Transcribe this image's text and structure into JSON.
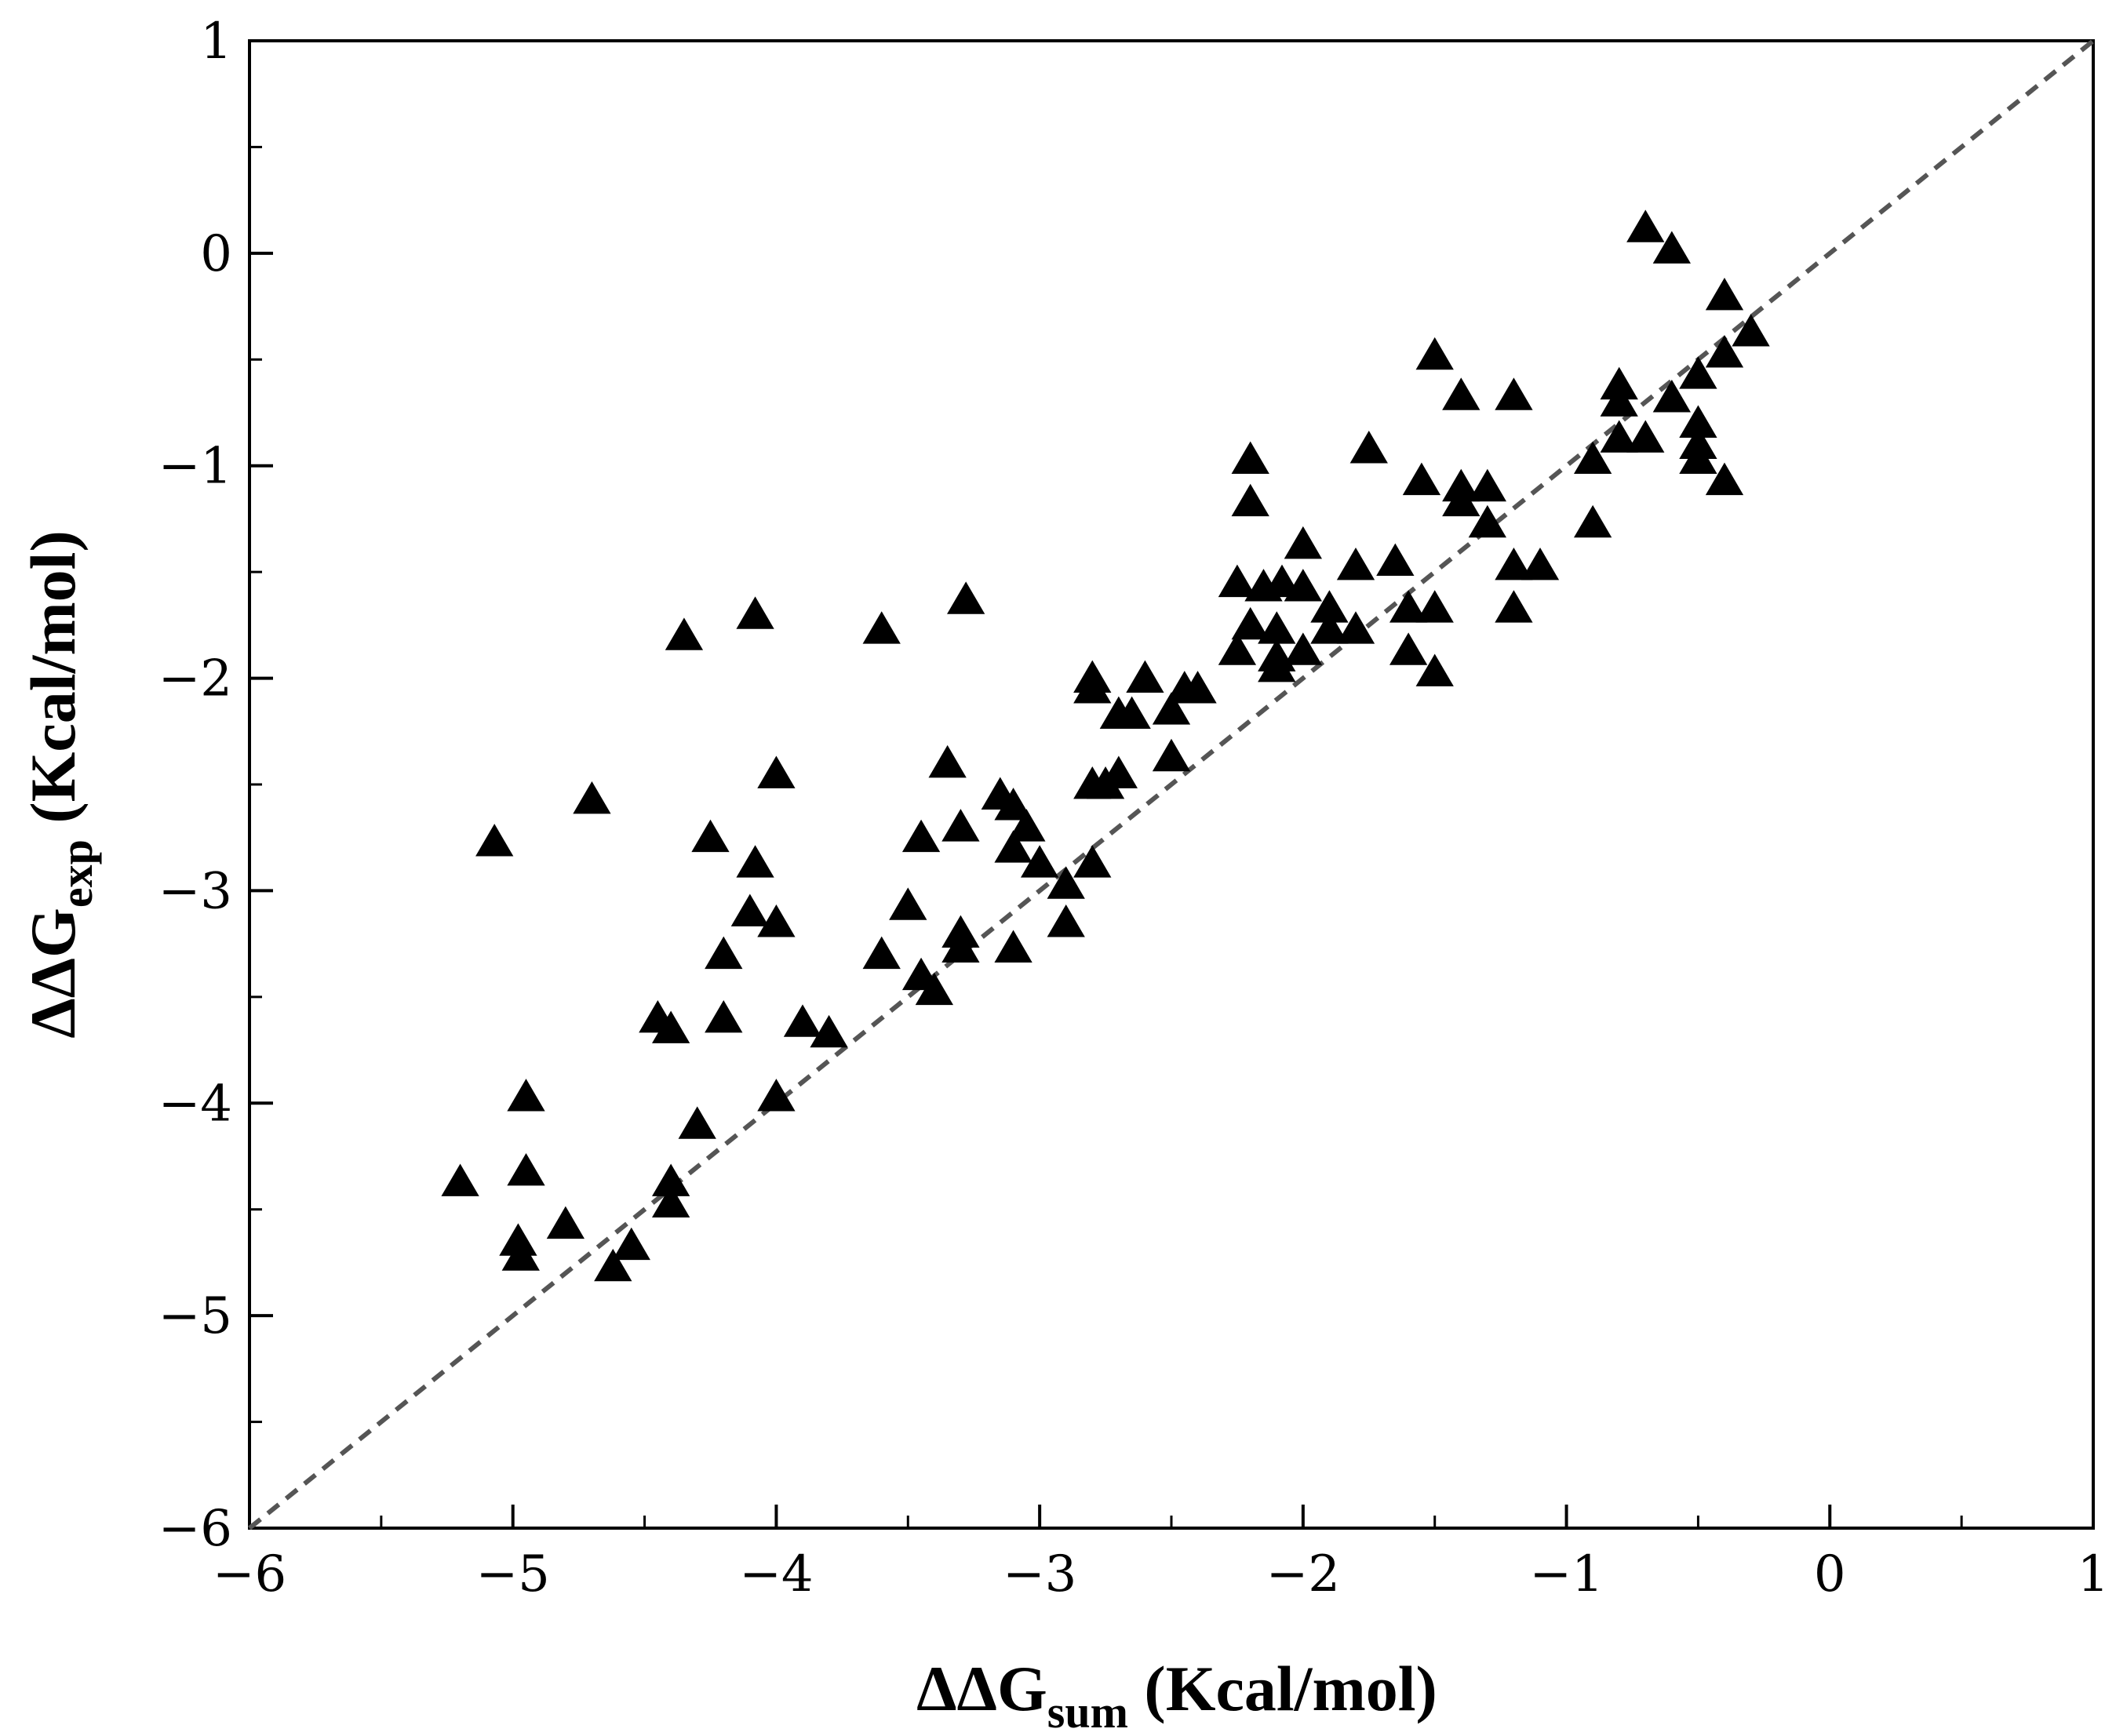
{
  "chart_data": {
    "type": "scatter",
    "title": "",
    "xlabel": {
      "main": "ΔΔG",
      "sub": "sum",
      "unit": " (Kcal/mol)"
    },
    "ylabel": {
      "main": "ΔΔG",
      "sub": "exp",
      "unit": " (Kcal/mol)"
    },
    "xlim": [
      -6,
      1
    ],
    "ylim": [
      -6,
      1
    ],
    "major_ticks": [
      -6,
      -5,
      -4,
      -3,
      -2,
      -1,
      0,
      1
    ],
    "tick_labels": [
      "−6",
      "−5",
      "−4",
      "−3",
      "−2",
      "−1",
      "0",
      "1"
    ],
    "grid": false,
    "legend": "none",
    "marker": "triangle",
    "marker_color": "#000000",
    "reference_line": {
      "style": "dashed",
      "color": "#555555",
      "from": [
        -6,
        -6
      ],
      "to": [
        1,
        1
      ]
    },
    "series": [
      {
        "points": [
          [
            -0.7,
            0.12
          ],
          [
            -0.6,
            0.02
          ],
          [
            -0.4,
            -0.2
          ],
          [
            -0.3,
            -0.37
          ],
          [
            -0.4,
            -0.47
          ],
          [
            -0.5,
            -0.57
          ],
          [
            -0.6,
            -0.68
          ],
          [
            -0.8,
            -0.62
          ],
          [
            -0.8,
            -0.7
          ],
          [
            -0.7,
            -0.87
          ],
          [
            -0.8,
            -0.87
          ],
          [
            -0.5,
            -0.8
          ],
          [
            -0.5,
            -0.9
          ],
          [
            -0.5,
            -0.97
          ],
          [
            -0.4,
            -1.07
          ],
          [
            -0.9,
            -0.97
          ],
          [
            -0.9,
            -1.27
          ],
          [
            -1.5,
            -0.48
          ],
          [
            -1.4,
            -0.67
          ],
          [
            -1.2,
            -0.67
          ],
          [
            -1.75,
            -0.92
          ],
          [
            -1.55,
            -1.07
          ],
          [
            -1.4,
            -1.1
          ],
          [
            -1.3,
            -1.1
          ],
          [
            -1.4,
            -1.17
          ],
          [
            -1.3,
            -1.27
          ],
          [
            -1.2,
            -1.47
          ],
          [
            -1.1,
            -1.47
          ],
          [
            -1.2,
            -1.67
          ],
          [
            -1.65,
            -1.45
          ],
          [
            -1.6,
            -1.67
          ],
          [
            -1.5,
            -1.67
          ],
          [
            -1.6,
            -1.87
          ],
          [
            -1.5,
            -1.97
          ],
          [
            -2.2,
            -0.97
          ],
          [
            -2.2,
            -1.17
          ],
          [
            -2.0,
            -1.37
          ],
          [
            -1.8,
            -1.47
          ],
          [
            -2.25,
            -1.55
          ],
          [
            -2.15,
            -1.57
          ],
          [
            -2.08,
            -1.55
          ],
          [
            -2.0,
            -1.57
          ],
          [
            -2.2,
            -1.75
          ],
          [
            -2.1,
            -1.77
          ],
          [
            -1.9,
            -1.67
          ],
          [
            -1.9,
            -1.77
          ],
          [
            -1.8,
            -1.77
          ],
          [
            -2.25,
            -1.87
          ],
          [
            -2.1,
            -1.9
          ],
          [
            -2.1,
            -1.95
          ],
          [
            -2.0,
            -1.87
          ],
          [
            -2.8,
            -2.0
          ],
          [
            -2.8,
            -2.05
          ],
          [
            -2.6,
            -2.0
          ],
          [
            -2.45,
            -2.05
          ],
          [
            -2.4,
            -2.05
          ],
          [
            -2.5,
            -2.15
          ],
          [
            -2.7,
            -2.17
          ],
          [
            -2.65,
            -2.17
          ],
          [
            -2.5,
            -2.37
          ],
          [
            -2.7,
            -2.45
          ],
          [
            -2.8,
            -2.5
          ],
          [
            -2.75,
            -2.5
          ],
          [
            -2.8,
            -2.87
          ],
          [
            -2.9,
            -2.97
          ],
          [
            -2.9,
            -3.15
          ],
          [
            -3.0,
            -2.87
          ],
          [
            -3.1,
            -2.8
          ],
          [
            -3.05,
            -2.7
          ],
          [
            -3.1,
            -2.6
          ],
          [
            -3.15,
            -2.55
          ],
          [
            -3.35,
            -2.4
          ],
          [
            -3.3,
            -2.7
          ],
          [
            -3.45,
            -2.75
          ],
          [
            -3.28,
            -1.63
          ],
          [
            -3.6,
            -1.77
          ],
          [
            -3.5,
            -3.07
          ],
          [
            -3.3,
            -3.2
          ],
          [
            -3.3,
            -3.27
          ],
          [
            -3.1,
            -3.27
          ],
          [
            -3.6,
            -3.3
          ],
          [
            -3.45,
            -3.4
          ],
          [
            -3.4,
            -3.47
          ],
          [
            -3.8,
            -3.67
          ],
          [
            -3.9,
            -3.62
          ],
          [
            -4.0,
            -3.97
          ],
          [
            -4.08,
            -1.7
          ],
          [
            -4.35,
            -1.8
          ],
          [
            -4.0,
            -2.45
          ],
          [
            -4.08,
            -2.87
          ],
          [
            -4.25,
            -2.75
          ],
          [
            -4.1,
            -3.1
          ],
          [
            -4.0,
            -3.15
          ],
          [
            -4.2,
            -3.3
          ],
          [
            -4.2,
            -3.6
          ],
          [
            -4.45,
            -3.6
          ],
          [
            -4.4,
            -3.65
          ],
          [
            -4.3,
            -4.1
          ],
          [
            -4.4,
            -4.37
          ],
          [
            -4.4,
            -4.47
          ],
          [
            -4.7,
            -2.57
          ],
          [
            -5.07,
            -2.77
          ],
          [
            -4.95,
            -3.97
          ],
          [
            -4.95,
            -4.32
          ],
          [
            -5.2,
            -4.37
          ],
          [
            -4.8,
            -4.57
          ],
          [
            -4.98,
            -4.65
          ],
          [
            -4.97,
            -4.72
          ],
          [
            -4.55,
            -4.67
          ],
          [
            -4.62,
            -4.77
          ]
        ]
      }
    ]
  }
}
